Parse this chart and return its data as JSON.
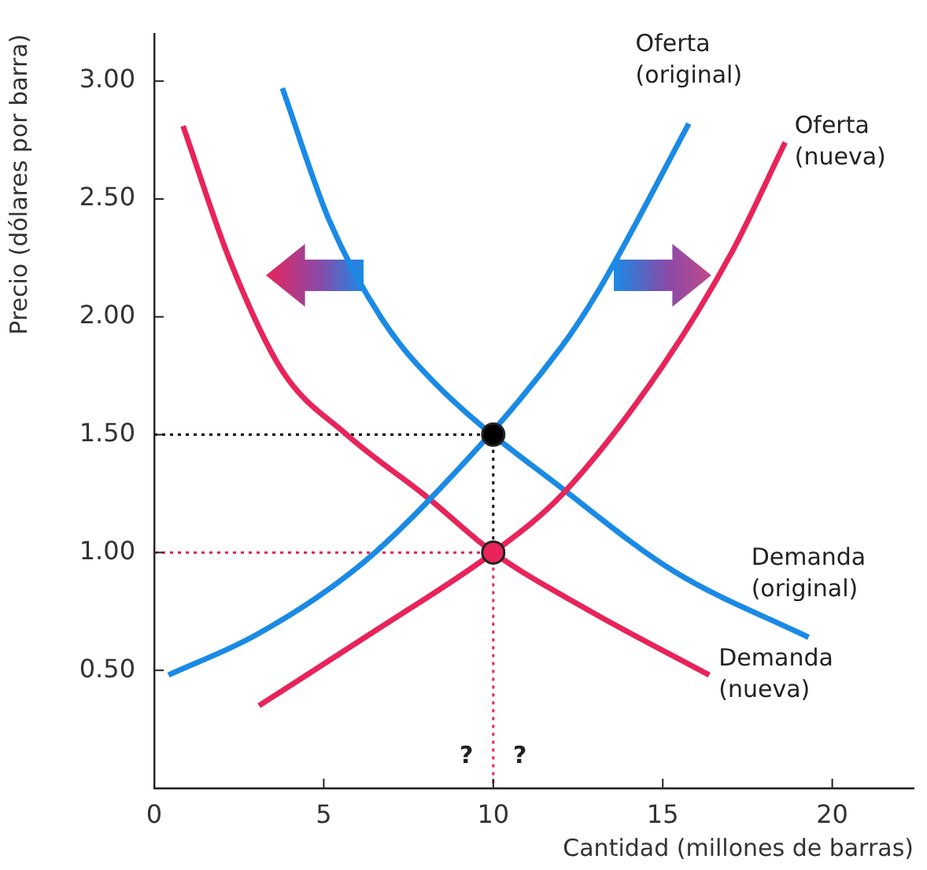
{
  "chart_data": {
    "type": "line",
    "xlabel": "Cantidad (millones de barras)",
    "ylabel": "Precio (dólares por barra)",
    "xlim": [
      0,
      22.4
    ],
    "ylim": [
      0,
      3.2
    ],
    "xticks": [
      0,
      5,
      10,
      15,
      20
    ],
    "yticks": [
      {
        "value": 0.5,
        "label": "0.50"
      },
      {
        "value": 1,
        "label": "1.00"
      },
      {
        "value": 1.5,
        "label": "1.50"
      },
      {
        "value": 2,
        "label": "2.00"
      },
      {
        "value": 2.5,
        "label": "2.50"
      },
      {
        "value": 3,
        "label": "3.00"
      }
    ],
    "grid": false,
    "legend": false,
    "marker": "none",
    "line_style": "solid",
    "series": [
      {
        "name": "Oferta (original)",
        "color": "#1a8ae6",
        "x": [
          0.42,
          3,
          5.85,
          8.09,
          12,
          13.1,
          15.77
        ],
        "values": [
          0.48,
          0.65,
          0.92,
          1.22,
          1.87,
          2.11,
          2.82
        ]
      },
      {
        "name": "Oferta (nueva)",
        "color": "#e8245a",
        "x": [
          3.09,
          6.54,
          10,
          12.06,
          14.99,
          17.06,
          18.61
        ],
        "values": [
          0.35,
          0.67,
          1.0,
          1.25,
          1.79,
          2.28,
          2.74
        ]
      },
      {
        "name": "Demanda (original)",
        "color": "#1a8ae6",
        "x": [
          3.78,
          5.16,
          6.72,
          8.27,
          12.23,
          15.33,
          19.3
        ],
        "values": [
          2.97,
          2.41,
          1.99,
          1.72,
          1.25,
          0.92,
          0.64
        ]
      },
      {
        "name": "Demanda (nueva)",
        "color": "#e8245a",
        "x": [
          0.85,
          2.23,
          3.78,
          5.68,
          8.09,
          10,
          12.75,
          16.37
        ],
        "values": [
          2.81,
          2.24,
          1.77,
          1.5,
          1.23,
          1.0,
          0.76,
          0.48
        ]
      },
      {
        "line_style": "dotted",
        "color": "#000000",
        "x": [
          0,
          10,
          10
        ],
        "values": [
          1.5,
          1.5,
          1.0
        ]
      },
      {
        "line_style": "dotted",
        "color": "#e8245a",
        "x": [
          0,
          10,
          10
        ],
        "values": [
          1.0,
          1.0,
          0
        ]
      },
      {
        "type": "scatter",
        "marker": "circle",
        "color": "#000000",
        "x": [
          10
        ],
        "values": [
          1.5
        ]
      },
      {
        "type": "scatter",
        "marker": "circle",
        "color": "#e8245a",
        "x": [
          10
        ],
        "values": [
          1.0
        ]
      }
    ],
    "annotations": [
      "?",
      "?"
    ]
  }
}
